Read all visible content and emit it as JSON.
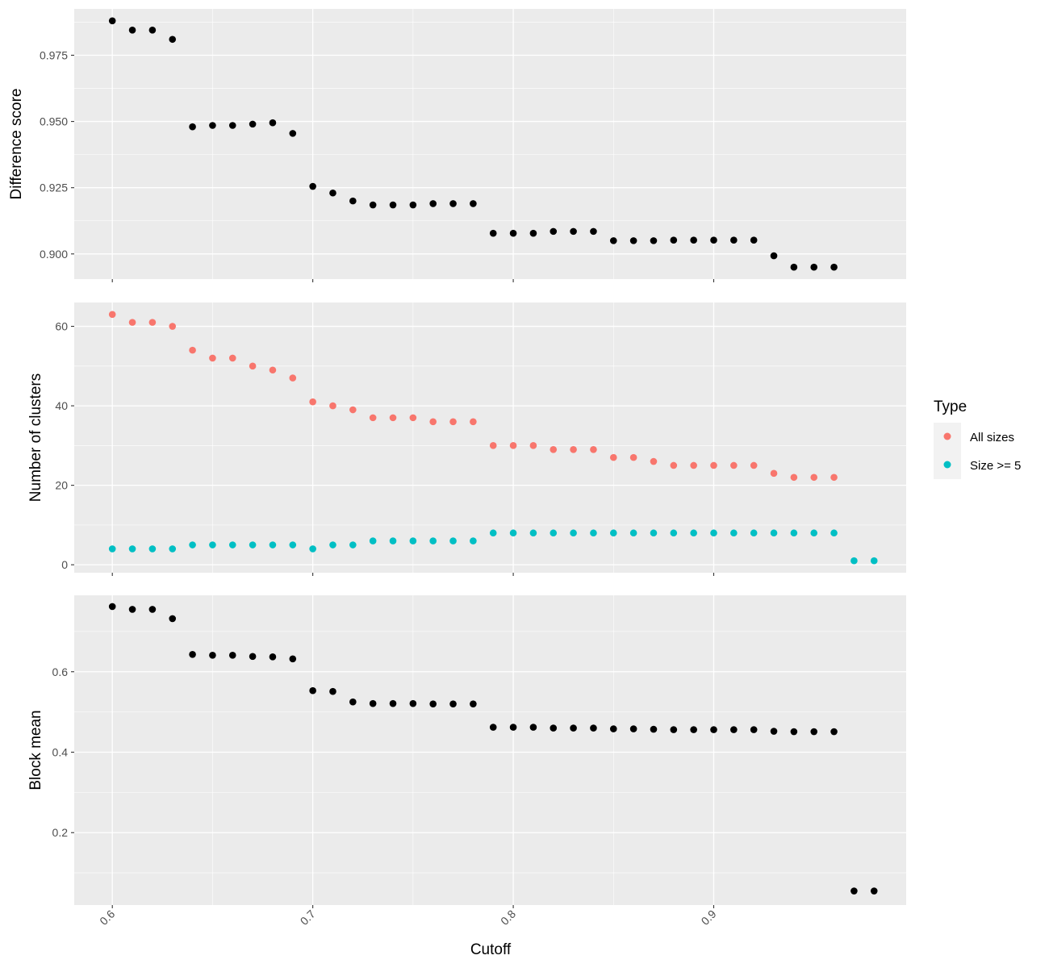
{
  "chart_data": {
    "type": "scatter",
    "x_label": "Cutoff",
    "x_ticks": [
      0.6,
      0.7,
      0.8,
      0.9
    ],
    "x_tick_labels": [
      "0.6",
      "0.7",
      "0.8",
      "0.9"
    ],
    "x_range": [
      0.581,
      0.996
    ],
    "x": [
      0.6,
      0.61,
      0.62,
      0.63,
      0.64,
      0.65,
      0.66,
      0.67,
      0.68,
      0.69,
      0.7,
      0.71,
      0.72,
      0.73,
      0.74,
      0.75,
      0.76,
      0.77,
      0.78,
      0.79,
      0.8,
      0.81,
      0.82,
      0.83,
      0.84,
      0.85,
      0.86,
      0.87,
      0.88,
      0.89,
      0.9,
      0.91,
      0.92,
      0.93,
      0.94,
      0.95,
      0.96
    ],
    "x_all": [
      0.6,
      0.61,
      0.62,
      0.63,
      0.64,
      0.65,
      0.66,
      0.67,
      0.68,
      0.69,
      0.7,
      0.71,
      0.72,
      0.73,
      0.74,
      0.75,
      0.76,
      0.77,
      0.78,
      0.79,
      0.8,
      0.81,
      0.82,
      0.83,
      0.84,
      0.85,
      0.86,
      0.87,
      0.88,
      0.89,
      0.9,
      0.91,
      0.92,
      0.93,
      0.94,
      0.95,
      0.96,
      0.97,
      0.98
    ],
    "panels": [
      {
        "ylabel": "Difference score",
        "y_range": [
          0.8905,
          0.9925
        ],
        "y_ticks": [
          0.9,
          0.925,
          0.95,
          0.975
        ],
        "y_tick_labels": [
          "0.900",
          "0.925",
          "0.950",
          "0.975"
        ],
        "series": [
          {
            "color": "#000000",
            "x_key": "x",
            "values": [
              0.988,
              0.9845,
              0.9845,
              0.981,
              0.948,
              0.9485,
              0.9485,
              0.949,
              0.9495,
              0.9455,
              0.9255,
              0.923,
              0.92,
              0.9185,
              0.9185,
              0.9185,
              0.919,
              0.919,
              0.919,
              0.9078,
              0.9078,
              0.9078,
              0.9085,
              0.9085,
              0.9085,
              0.905,
              0.905,
              0.905,
              0.9052,
              0.9052,
              0.9052,
              0.9052,
              0.9052,
              0.8993,
              0.895,
              0.895,
              0.895
            ]
          }
        ]
      },
      {
        "ylabel": "Number of clusters",
        "y_range": [
          -2,
          66
        ],
        "y_ticks": [
          0,
          20,
          40,
          60
        ],
        "y_tick_labels": [
          "0",
          "20",
          "40",
          "60"
        ],
        "series": [
          {
            "name": "All sizes",
            "color": "#F8766D",
            "x_key": "x",
            "values": [
              63,
              61,
              61,
              60,
              54,
              52,
              52,
              50,
              49,
              47,
              41,
              40,
              39,
              37,
              37,
              37,
              36,
              36,
              36,
              30,
              30,
              30,
              29,
              29,
              29,
              27,
              27,
              26,
              25,
              25,
              25,
              25,
              25,
              23,
              22,
              22,
              22
            ]
          },
          {
            "name": "Size >= 5",
            "color": "#00BFC4",
            "x_key": "x_all",
            "values": [
              4,
              4,
              4,
              4,
              5,
              5,
              5,
              5,
              5,
              5,
              4,
              5,
              5,
              6,
              6,
              6,
              6,
              6,
              6,
              8,
              8,
              8,
              8,
              8,
              8,
              8,
              8,
              8,
              8,
              8,
              8,
              8,
              8,
              8,
              8,
              8,
              8,
              1,
              1
            ]
          }
        ]
      },
      {
        "ylabel": "Block mean",
        "y_range": [
          0.02,
          0.79
        ],
        "y_ticks": [
          0.2,
          0.4,
          0.6
        ],
        "y_tick_labels": [
          "0.2",
          "0.4",
          "0.6"
        ],
        "series": [
          {
            "color": "#000000",
            "x_key": "x_all",
            "values": [
              0.762,
              0.755,
              0.755,
              0.732,
              0.643,
              0.641,
              0.641,
              0.638,
              0.637,
              0.632,
              0.553,
              0.551,
              0.525,
              0.521,
              0.521,
              0.521,
              0.52,
              0.52,
              0.52,
              0.462,
              0.462,
              0.462,
              0.46,
              0.46,
              0.46,
              0.458,
              0.458,
              0.457,
              0.456,
              0.456,
              0.456,
              0.456,
              0.456,
              0.452,
              0.451,
              0.451,
              0.451,
              0.055,
              0.055
            ]
          }
        ]
      }
    ],
    "legend": {
      "title": "Type",
      "position": "right",
      "entries": [
        {
          "label": "All sizes",
          "color": "#F8766D"
        },
        {
          "label": "Size >= 5",
          "color": "#00BFC4"
        }
      ]
    },
    "grid": true,
    "background": "#EBEBEB"
  }
}
